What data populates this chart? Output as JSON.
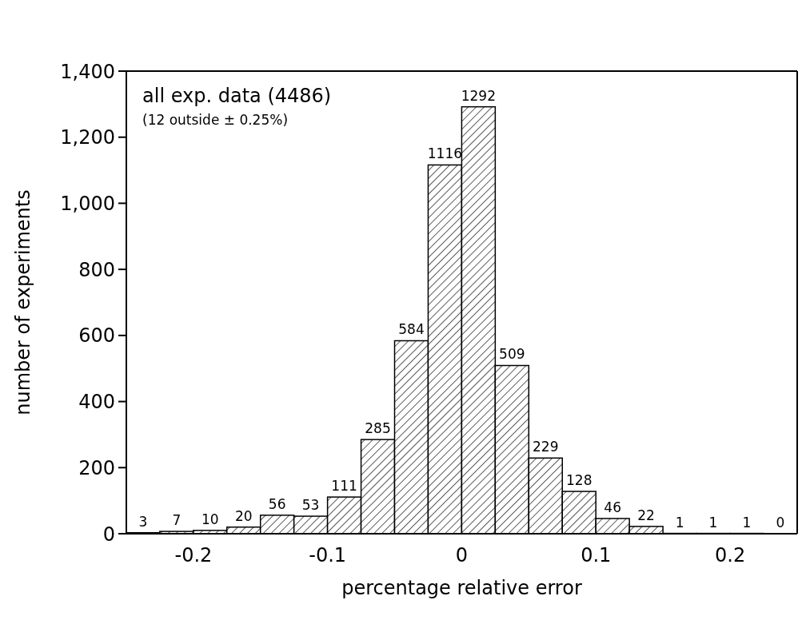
{
  "chart_data": {
    "type": "histogram",
    "xlabel": "percentage relative error",
    "ylabel": "number of experiments",
    "annotations": [
      "all exp. data (4486)",
      "(12 outside ± 0.25%)"
    ],
    "bins": [
      -0.25,
      -0.225,
      -0.2,
      -0.175,
      -0.15,
      -0.125,
      -0.1,
      -0.075,
      -0.05,
      -0.025,
      0,
      0.025,
      0.05,
      0.075,
      0.1,
      0.125,
      0.15,
      0.175,
      0.2,
      0.225,
      0.25
    ],
    "values": [
      3,
      7,
      10,
      20,
      56,
      53,
      111,
      285,
      584,
      1116,
      1292,
      509,
      229,
      128,
      46,
      22,
      1,
      1,
      1,
      0
    ],
    "color": "#000000",
    "data_labels": true,
    "xlim": [
      -0.25,
      0.25
    ],
    "xticks": [
      -0.2,
      -0.1,
      0,
      0.1,
      0.2
    ],
    "ylim": [
      0,
      1400
    ],
    "yticks": [
      0,
      {
        "value": 200,
        "label": "200"
      },
      {
        "value": 400,
        "label": "400"
      },
      {
        "value": 600,
        "label": "600"
      },
      {
        "value": 800,
        "label": "800"
      },
      {
        "value": 1000,
        "label": "1,000"
      },
      {
        "value": 1200,
        "label": "1,200"
      },
      {
        "value": 1400,
        "label": "1,400"
      }
    ],
    "grid": false,
    "legend": false
  }
}
